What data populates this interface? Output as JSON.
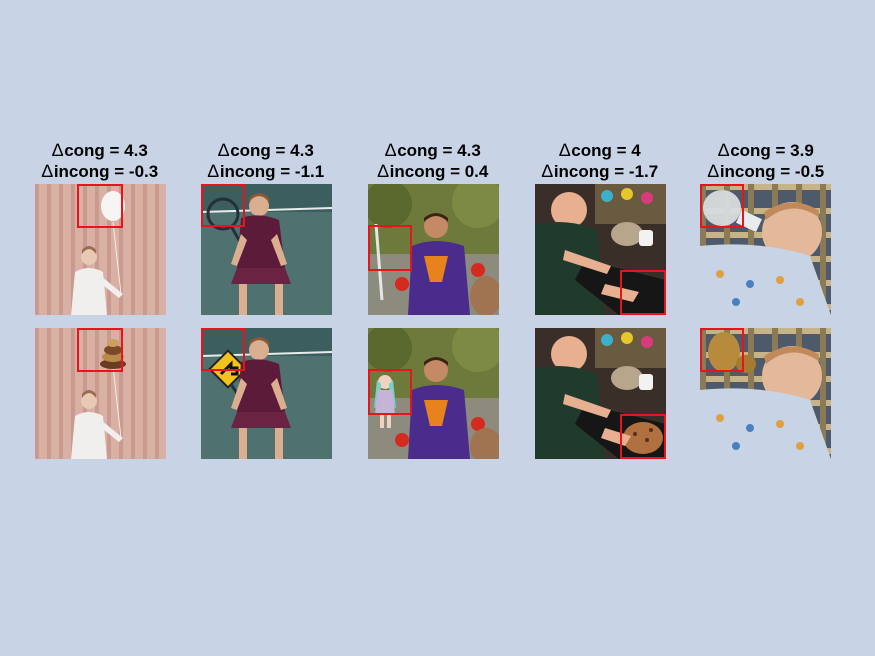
{
  "columns": [
    {
      "cong_label": "cong = 4.3",
      "incong_label": "incong = -0.3",
      "top_scene": "balloon",
      "bottom_scene": "cake"
    },
    {
      "cong_label": "cong = 4.3",
      "incong_label": "incong = -1.1",
      "top_scene": "racket",
      "bottom_scene": "sign"
    },
    {
      "cong_label": "cong = 4.3",
      "incong_label": "incong = 0.4",
      "top_scene": "sword",
      "bottom_scene": "doll"
    },
    {
      "cong_label": "cong = 4",
      "incong_label": "incong = -1.7",
      "top_scene": "keyboard",
      "bottom_scene": "cookie"
    },
    {
      "cong_label": "cong = 3.9",
      "incong_label": "incong = -0.5",
      "top_scene": "bottle",
      "bottom_scene": "gourd"
    }
  ],
  "delta_symbol": "∆",
  "box_color": "#e8141c",
  "background_color": "#c8d4e6"
}
